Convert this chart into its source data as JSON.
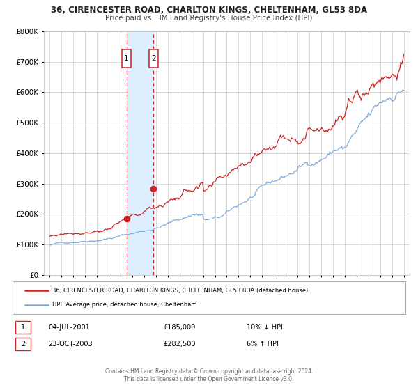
{
  "title": "36, CIRENCESTER ROAD, CHARLTON KINGS, CHELTENHAM, GL53 8DA",
  "subtitle": "Price paid vs. HM Land Registry's House Price Index (HPI)",
  "legend_line1": "36, CIRENCESTER ROAD, CHARLTON KINGS, CHELTENHAM, GL53 8DA (detached house)",
  "legend_line2": "HPI: Average price, detached house, Cheltenham",
  "transaction1_date": "04-JUL-2001",
  "transaction1_price": "£185,000",
  "transaction1_hpi": "10% ↓ HPI",
  "transaction2_date": "23-OCT-2003",
  "transaction2_price": "£282,500",
  "transaction2_hpi": "6% ↑ HPI",
  "footer1": "Contains HM Land Registry data © Crown copyright and database right 2024.",
  "footer2": "This data is licensed under the Open Government Licence v3.0.",
  "transaction1_x": 2001.5,
  "transaction2_x": 2003.8,
  "transaction1_y": 185000,
  "transaction2_y": 282500,
  "hpi_line_color": "#7aabdd",
  "price_line_color": "#cc2222",
  "dot_color": "#cc2222",
  "shade_color": "#ddeeff",
  "dashed_line_color": "#cc2222",
  "bg_color": "#ffffff",
  "grid_color": "#cccccc",
  "ylim": [
    0,
    800000
  ],
  "yticks": [
    0,
    100000,
    200000,
    300000,
    400000,
    500000,
    600000,
    700000,
    800000
  ],
  "xlim": [
    1994.5,
    2025.5
  ],
  "xticks": [
    1995,
    1996,
    1997,
    1998,
    1999,
    2000,
    2001,
    2002,
    2003,
    2004,
    2005,
    2006,
    2007,
    2008,
    2009,
    2010,
    2011,
    2012,
    2013,
    2014,
    2015,
    2016,
    2017,
    2018,
    2019,
    2020,
    2021,
    2022,
    2023,
    2024,
    2025
  ]
}
